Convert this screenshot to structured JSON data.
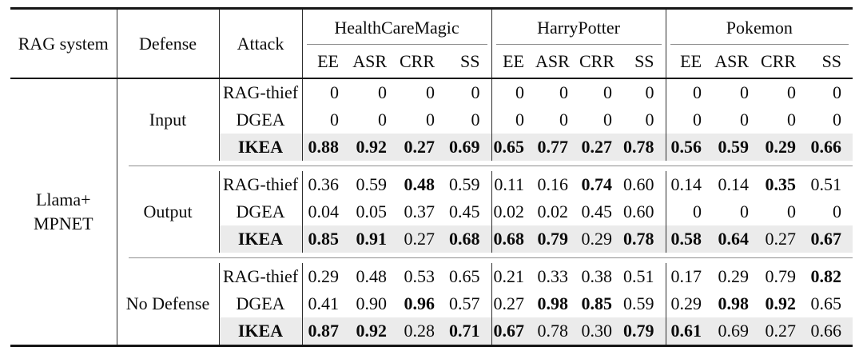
{
  "table": {
    "header": {
      "rag_system": "RAG system",
      "defense": "Defense",
      "attack": "Attack",
      "groups": [
        {
          "label": "HealthCareMagic",
          "metrics": [
            "EE",
            "ASR",
            "CRR",
            "SS"
          ]
        },
        {
          "label": "HarryPotter",
          "metrics": [
            "EE",
            "ASR",
            "CRR",
            "SS"
          ]
        },
        {
          "label": "Pokemon",
          "metrics": [
            "EE",
            "ASR",
            "CRR",
            "SS"
          ]
        }
      ]
    },
    "rag_system_lines": [
      "Llama+",
      "MPNET"
    ],
    "blocks": [
      {
        "defense": "Input",
        "rows": [
          {
            "attack": "RAG-thief",
            "attack_bold": false,
            "highlight": false,
            "values": [
              "0",
              "0",
              "0",
              "0",
              "0",
              "0",
              "0",
              "0",
              "0",
              "0",
              "0",
              "0"
            ],
            "bold": []
          },
          {
            "attack": "DGEA",
            "attack_bold": false,
            "highlight": false,
            "values": [
              "0",
              "0",
              "0",
              "0",
              "0",
              "0",
              "0",
              "0",
              "0",
              "0",
              "0",
              "0"
            ],
            "bold": []
          },
          {
            "attack": "IKEA",
            "attack_bold": true,
            "highlight": true,
            "values": [
              "0.88",
              "0.92",
              "0.27",
              "0.69",
              "0.65",
              "0.77",
              "0.27",
              "0.78",
              "0.56",
              "0.59",
              "0.29",
              "0.66"
            ],
            "bold": [
              0,
              1,
              2,
              3,
              4,
              5,
              6,
              7,
              8,
              9,
              10,
              11
            ]
          }
        ]
      },
      {
        "defense": "Output",
        "rows": [
          {
            "attack": "RAG-thief",
            "attack_bold": false,
            "highlight": false,
            "values": [
              "0.36",
              "0.59",
              "0.48",
              "0.59",
              "0.11",
              "0.16",
              "0.74",
              "0.60",
              "0.14",
              "0.14",
              "0.35",
              "0.51"
            ],
            "bold": [
              2,
              6,
              10
            ]
          },
          {
            "attack": "DGEA",
            "attack_bold": false,
            "highlight": false,
            "values": [
              "0.04",
              "0.05",
              "0.37",
              "0.45",
              "0.02",
              "0.02",
              "0.45",
              "0.60",
              "0",
              "0",
              "0",
              "0"
            ],
            "bold": []
          },
          {
            "attack": "IKEA",
            "attack_bold": true,
            "highlight": true,
            "values": [
              "0.85",
              "0.91",
              "0.27",
              "0.68",
              "0.68",
              "0.79",
              "0.29",
              "0.78",
              "0.58",
              "0.64",
              "0.27",
              "0.67"
            ],
            "bold": [
              0,
              1,
              3,
              4,
              5,
              7,
              8,
              9,
              11
            ]
          }
        ]
      },
      {
        "defense": "No Defense",
        "rows": [
          {
            "attack": "RAG-thief",
            "attack_bold": false,
            "highlight": false,
            "values": [
              "0.29",
              "0.48",
              "0.53",
              "0.65",
              "0.21",
              "0.33",
              "0.38",
              "0.51",
              "0.17",
              "0.29",
              "0.79",
              "0.82"
            ],
            "bold": [
              11
            ]
          },
          {
            "attack": "DGEA",
            "attack_bold": false,
            "highlight": false,
            "values": [
              "0.41",
              "0.90",
              "0.96",
              "0.57",
              "0.27",
              "0.98",
              "0.85",
              "0.59",
              "0.29",
              "0.98",
              "0.92",
              "0.65"
            ],
            "bold": [
              2,
              5,
              6,
              9,
              10
            ]
          },
          {
            "attack": "IKEA",
            "attack_bold": true,
            "highlight": true,
            "values": [
              "0.87",
              "0.92",
              "0.28",
              "0.71",
              "0.67",
              "0.78",
              "0.30",
              "0.79",
              "0.61",
              "0.69",
              "0.27",
              "0.66"
            ],
            "bold": [
              0,
              1,
              3,
              4,
              7,
              8
            ]
          }
        ]
      }
    ],
    "colors": {
      "highlight_row_bg": "#ebebeb",
      "thick_rule": "#161616",
      "thin_rule": "#8f8f8f",
      "vertical_line": "#2e2e2e",
      "text": "#0b0b0b"
    }
  }
}
